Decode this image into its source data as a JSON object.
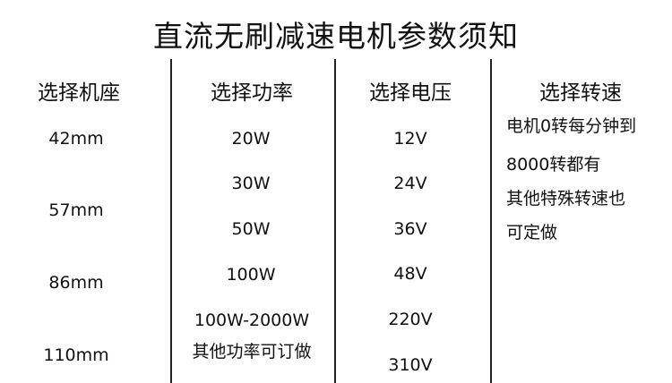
{
  "title": "直流无刷减速电机参数须知",
  "columns": [
    {
      "header": "选择机座",
      "values": [
        "42mm",
        "57mm",
        "86mm",
        "110mm"
      ]
    },
    {
      "header": "选择功率",
      "values": [
        "20W",
        "30W",
        "50W",
        "100W",
        "100W-2000W",
        "其他功率可订做"
      ]
    },
    {
      "header": "选择电压",
      "values": [
        "12V",
        "24V",
        "36V",
        "48V",
        "220V",
        "310V"
      ]
    },
    {
      "header": "选择转速",
      "lines": [
        "电机0转每分钟到",
        "8000转都有",
        "其他特殊转速也",
        "可定做"
      ]
    }
  ]
}
